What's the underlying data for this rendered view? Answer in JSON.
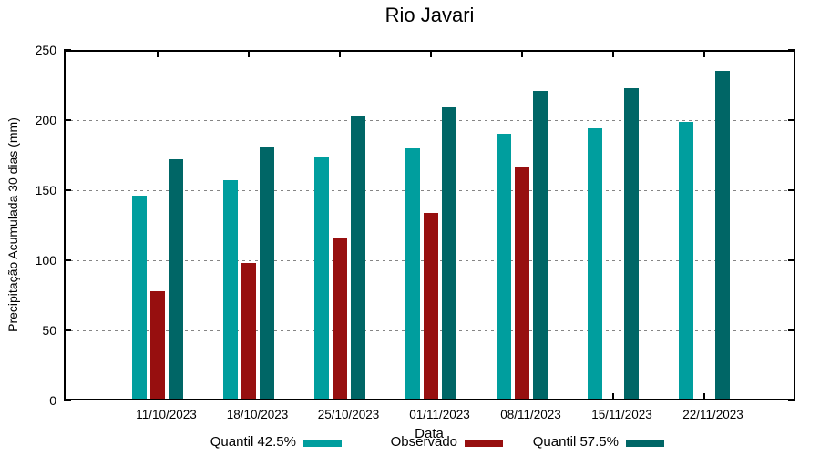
{
  "chart_data": {
    "type": "bar",
    "title": "Rio Javari",
    "xlabel": "Data",
    "ylabel": "Precipitação Acumulada 30 dias (mm)",
    "categories": [
      "11/10/2023",
      "18/10/2023",
      "25/10/2023",
      "01/11/2023",
      "08/11/2023",
      "15/11/2023",
      "22/11/2023"
    ],
    "series": [
      {
        "name": "Quantil 42.5%",
        "color": "#009E9E",
        "values": [
          146,
          157,
          174,
          180,
          190,
          194,
          199
        ]
      },
      {
        "name": "Observado",
        "color": "#970F0F",
        "values": [
          78,
          98,
          116,
          134,
          166,
          null,
          null
        ]
      },
      {
        "name": "Quantil 57.5%",
        "color": "#006666",
        "values": [
          172,
          181,
          203,
          209,
          221,
          223,
          235
        ]
      }
    ],
    "ylim": [
      0,
      250
    ],
    "ytick_step": 50,
    "yticks": [
      0,
      50,
      100,
      150,
      200,
      250
    ],
    "grid": "horizontal-dotted",
    "grid_color": "#858585",
    "axis_color": "#000000",
    "legend_position": "bottom"
  }
}
